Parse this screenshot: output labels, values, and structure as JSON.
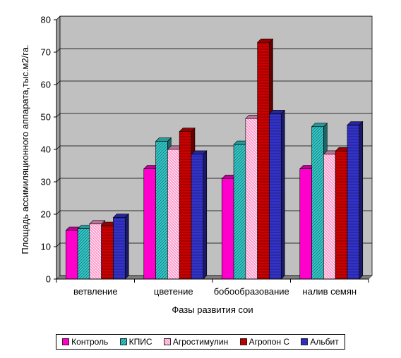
{
  "chart_data": {
    "type": "bar",
    "title": "",
    "xlabel": "Фазы развития сои",
    "ylabel": "Площадь ассимиляционного аппарата,тыс.м2/га.",
    "ylim": [
      0,
      80
    ],
    "yticks": [
      "0",
      "10",
      "20",
      "30",
      "40",
      "50",
      "60",
      "70",
      "80"
    ],
    "categories": [
      "ветвление",
      "цветение",
      "бобообразование",
      "налив семян"
    ],
    "series": [
      {
        "name": "Контроль",
        "color": "#ff00cc",
        "values": [
          15,
          34,
          31,
          34
        ]
      },
      {
        "name": "КПИС",
        "color": "#33cccc",
        "values": [
          15.5,
          42.5,
          41.5,
          47
        ]
      },
      {
        "name": "Агростимулин",
        "color": "#ff99cc",
        "values": [
          17,
          40,
          49.5,
          38.5
        ]
      },
      {
        "name": "Агропон С",
        "color": "#cc0000",
        "values": [
          16.5,
          45.5,
          73,
          39.5
        ]
      },
      {
        "name": "Альбит",
        "color": "#3333cc",
        "values": [
          19,
          38.5,
          51,
          47.5
        ]
      }
    ],
    "grid": true,
    "legend_position": "bottom",
    "plot_background": "#c0c0c0"
  }
}
